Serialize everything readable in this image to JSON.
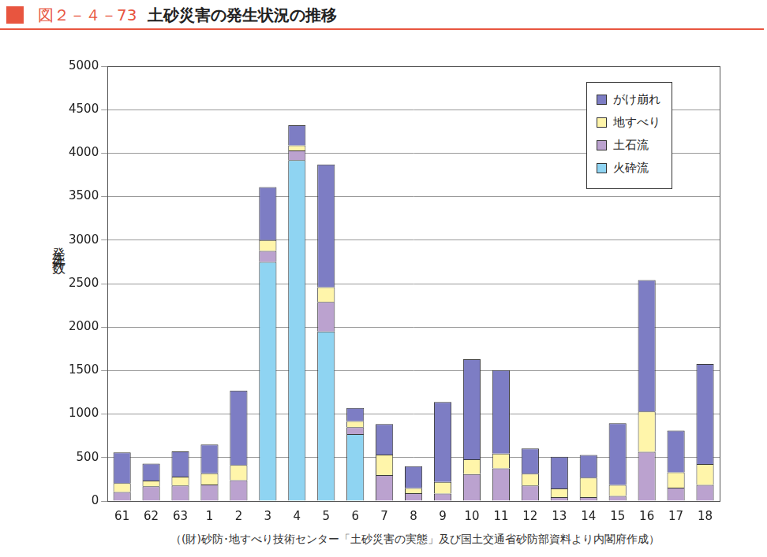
{
  "chart_data": {
    "type": "bar",
    "title": "図２－４－73　土砂災害の発生状況の推移",
    "y_label": "発生件数",
    "source": "（(財)砂防･地すべり技術センター「土砂災害の実態」及び国土交通省砂防部資料より内閣府作成）",
    "categories": [
      "61",
      "62",
      "63",
      "1",
      "2",
      "3",
      "4",
      "5",
      "6",
      "7",
      "8",
      "9",
      "10",
      "11",
      "12",
      "13",
      "14",
      "15",
      "16",
      "17",
      "18"
    ],
    "series": [
      {
        "name": "火砕流",
        "color": "#8fd4f2",
        "values": [
          0,
          0,
          0,
          0,
          0,
          2750,
          3920,
          1950,
          770,
          0,
          0,
          0,
          0,
          0,
          0,
          0,
          0,
          0,
          0,
          0,
          0
        ]
      },
      {
        "name": "土石流",
        "color": "#bba2cf",
        "values": [
          105,
          170,
          180,
          190,
          240,
          125,
          110,
          340,
          80,
          300,
          90,
          85,
          310,
          375,
          180,
          45,
          45,
          60,
          565,
          155,
          185
        ]
      },
      {
        "name": "地すべり",
        "color": "#fff5aa",
        "values": [
          100,
          65,
          100,
          130,
          175,
          125,
          60,
          170,
          70,
          235,
          60,
          135,
          170,
          170,
          135,
          100,
          225,
          125,
          465,
          175,
          240
        ]
      },
      {
        "name": "がけ崩れ",
        "color": "#7d7dc4",
        "values": [
          355,
          195,
          290,
          330,
          855,
          610,
          230,
          1410,
          150,
          350,
          250,
          920,
          1150,
          960,
          290,
          365,
          260,
          710,
          1510,
          480,
          1150
        ]
      }
    ],
    "stacked": true,
    "ylim": [
      0,
      5000
    ],
    "yticks": [
      0,
      500,
      1000,
      1500,
      2000,
      2500,
      3000,
      3500,
      4000,
      4500,
      5000
    ],
    "grid": true,
    "legend": "upper right"
  }
}
